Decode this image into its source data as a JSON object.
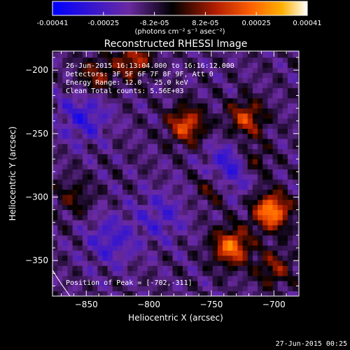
{
  "colorbar": {
    "labels": [
      "-0.00041",
      "-0.00025",
      "-8.2e-05",
      "8.2e-05",
      "0.00025",
      "0.00041"
    ],
    "unit_label": "(photons cm⁻² s⁻¹ asec⁻²)"
  },
  "chart_data": {
    "type": "heatmap",
    "title": "Reconstructed RHESSI Image",
    "xlabel": "Heliocentric X (arcsec)",
    "ylabel": "Heliocentric Y (arcsec)",
    "xlim": [
      -877,
      -680
    ],
    "ylim": [
      -378,
      -185
    ],
    "x_ticks": [
      -850,
      -800,
      -750,
      -700
    ],
    "y_ticks": [
      -200,
      -250,
      -300,
      -350
    ],
    "color_range": [
      -0.00041,
      0.00041
    ],
    "colormap": [
      "#0000ff",
      "#6a2aa0",
      "#000000",
      "#b21d00",
      "#ff6000",
      "#ffb000",
      "#ffffff"
    ],
    "info_lines": [
      "26-Jun-2015 16:13:04.000 to 16:16:12.000",
      "Detectors: 3F 5F 6F 7F 8F 9F, Att 0",
      "Energy Range: 12.0 - 25.0 keV",
      "Clean    Total counts: 5.56E+03"
    ],
    "peak_position": [
      -702,
      -311
    ],
    "peak_label": "Position of Peak = [-702,-311]",
    "sources": [
      {
        "x": -702,
        "y": -311,
        "amp": 0.00041
      },
      {
        "x": -734,
        "y": -339,
        "amp": 0.00036
      },
      {
        "x": -770,
        "y": -243,
        "amp": 0.0003
      },
      {
        "x": -722,
        "y": -238,
        "amp": 0.00026
      },
      {
        "x": -812,
        "y": -192,
        "amp": 0.00024
      },
      {
        "x": -842,
        "y": -205,
        "amp": 0.00019
      },
      {
        "x": -718,
        "y": -272,
        "amp": 0.00018
      },
      {
        "x": -748,
        "y": -292,
        "amp": 0.00016
      },
      {
        "x": -700,
        "y": -356,
        "amp": 0.00018
      },
      {
        "x": -860,
        "y": -300,
        "amp": 0.00012
      }
    ],
    "negative_regions": [
      {
        "x": -734,
        "y": -278,
        "amp": -0.00022
      },
      {
        "x": -852,
        "y": -236,
        "amp": -0.00016
      },
      {
        "x": -830,
        "y": -334,
        "amp": -0.00014
      },
      {
        "x": -790,
        "y": -314,
        "amp": -0.00012
      }
    ]
  },
  "footer": {
    "timestamp": "27-Jun-2015 00:25"
  }
}
